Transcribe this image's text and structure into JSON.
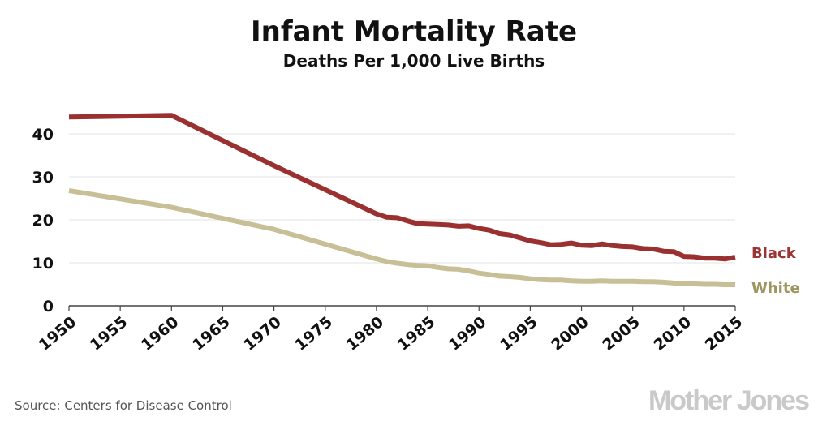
{
  "chart_data": {
    "type": "line",
    "title": "Infant Mortality Rate",
    "subtitle": "Deaths Per 1,000 Live Births",
    "xlabel": "",
    "ylabel": "",
    "xlim": [
      1950,
      2015
    ],
    "ylim": [
      0,
      45
    ],
    "grid": true,
    "legend": "right (inline labels)",
    "yticks": [
      "0",
      "10",
      "20",
      "30",
      "40"
    ],
    "xticks": [
      "1950",
      "1955",
      "1960",
      "1965",
      "1970",
      "1975",
      "1980",
      "1985",
      "1990",
      "1995",
      "2000",
      "2005",
      "2010",
      "2015"
    ],
    "series": [
      {
        "name": "Black",
        "color": "#9b3030",
        "label_color": "#9b3535",
        "x": [
          1950,
          1960,
          1970,
          1980,
          1981,
          1982,
          1983,
          1984,
          1985,
          1986,
          1987,
          1988,
          1989,
          1990,
          1991,
          1992,
          1993,
          1994,
          1995,
          1996,
          1997,
          1998,
          1999,
          2000,
          2001,
          2002,
          2003,
          2004,
          2005,
          2006,
          2007,
          2008,
          2009,
          2010,
          2011,
          2012,
          2013,
          2014,
          2015
        ],
        "y": [
          43.9,
          44.3,
          32.6,
          21.4,
          20.6,
          20.5,
          19.8,
          19.1,
          19.0,
          18.9,
          18.8,
          18.5,
          18.6,
          18.0,
          17.6,
          16.8,
          16.5,
          15.8,
          15.1,
          14.7,
          14.2,
          14.3,
          14.6,
          14.1,
          14.0,
          14.4,
          14.0,
          13.8,
          13.7,
          13.3,
          13.2,
          12.7,
          12.6,
          11.5,
          11.4,
          11.1,
          11.1,
          10.9,
          11.3
        ]
      },
      {
        "name": "White",
        "color": "#c8bf96",
        "label_color": "#9e9660",
        "x": [
          1950,
          1960,
          1970,
          1980,
          1981,
          1982,
          1983,
          1984,
          1985,
          1986,
          1987,
          1988,
          1989,
          1990,
          1991,
          1992,
          1993,
          1994,
          1995,
          1996,
          1997,
          1998,
          1999,
          2000,
          2001,
          2002,
          2003,
          2004,
          2005,
          2006,
          2007,
          2008,
          2009,
          2010,
          2011,
          2012,
          2013,
          2014,
          2015
        ],
        "y": [
          26.8,
          22.9,
          17.8,
          10.9,
          10.3,
          9.9,
          9.6,
          9.4,
          9.3,
          8.9,
          8.6,
          8.5,
          8.1,
          7.6,
          7.3,
          6.9,
          6.8,
          6.6,
          6.3,
          6.1,
          6.0,
          6.0,
          5.8,
          5.7,
          5.7,
          5.8,
          5.7,
          5.7,
          5.7,
          5.6,
          5.6,
          5.5,
          5.3,
          5.2,
          5.1,
          5.0,
          5.0,
          4.9,
          4.9
        ]
      }
    ]
  },
  "source": "Source: Centers for Disease Control",
  "logo": "Mother Jones"
}
